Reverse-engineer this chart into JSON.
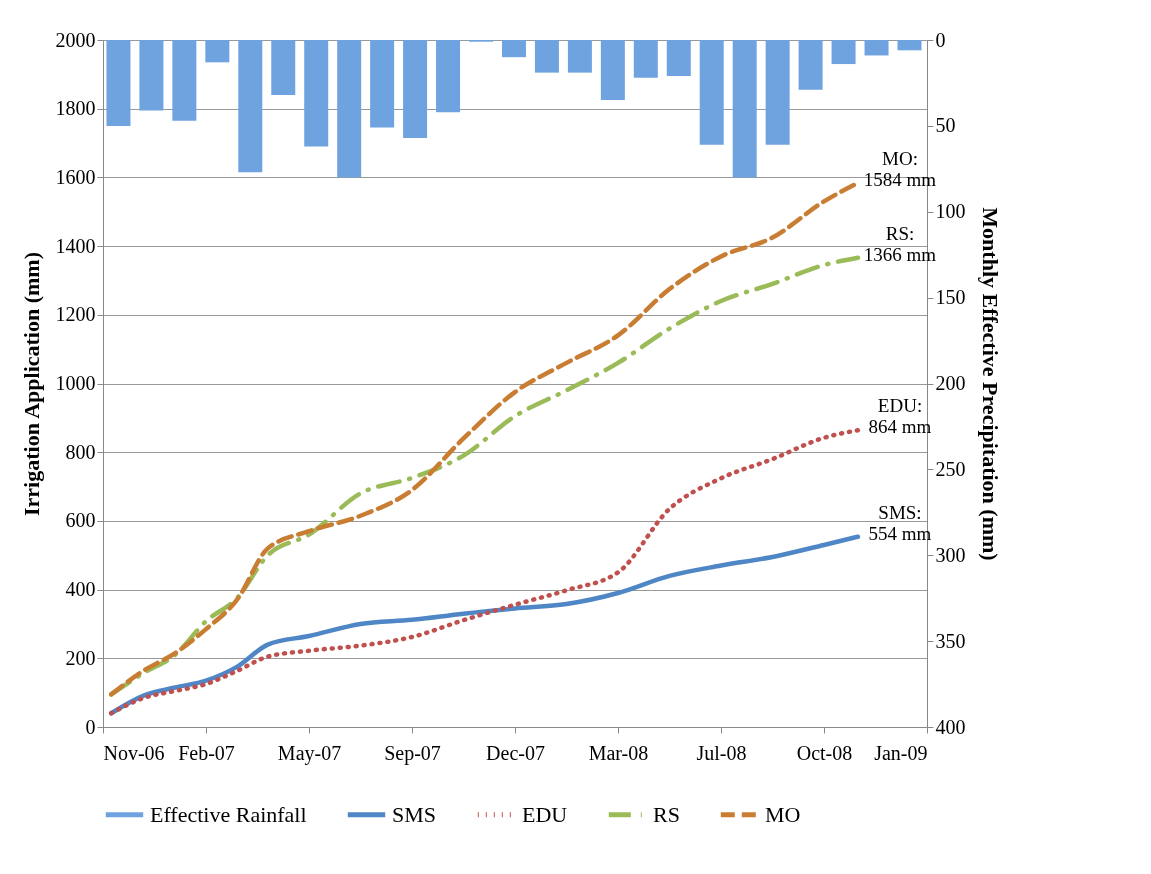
{
  "chart_data": {
    "type": "line",
    "ylabel": "Irrigation Application (mm)",
    "y2label": "Monthly Effective Precipitation (mm)",
    "xlim": [
      "2006-11-10",
      "2009-01-18"
    ],
    "xticks": [
      {
        "value": "2006-11-10",
        "label": "Nov-06"
      },
      {
        "value": "2007-02-18",
        "label": "Feb-07"
      },
      {
        "value": "2007-05-29",
        "label": "May-07"
      },
      {
        "value": "2007-09-06",
        "label": "Sep-07"
      },
      {
        "value": "2007-12-15",
        "label": "Dec-07"
      },
      {
        "value": "2008-03-24",
        "label": "Mar-08"
      },
      {
        "value": "2008-07-02",
        "label": "Jul-08"
      },
      {
        "value": "2008-10-10",
        "label": "Oct-08"
      },
      {
        "value": "2009-01-18",
        "label": "Jan-09"
      }
    ],
    "ylim": [
      0,
      2000
    ],
    "yticks": [
      0,
      200,
      400,
      600,
      800,
      1000,
      1200,
      1400,
      1600,
      1800,
      2000
    ],
    "y2lim": [
      400,
      0
    ],
    "y2ticks": [
      0,
      50,
      100,
      150,
      200,
      250,
      300,
      350,
      400
    ],
    "grid": "y",
    "legend": "bottom",
    "x": [
      "2006-11-18",
      "2006-12-20",
      "2007-01-19",
      "2007-02-18",
      "2007-03-20",
      "2007-04-19",
      "2007-05-29",
      "2007-07-18",
      "2007-09-06",
      "2007-10-26",
      "2007-12-15",
      "2008-02-03",
      "2008-03-24",
      "2008-05-13",
      "2008-07-02",
      "2008-08-21",
      "2008-10-10",
      "2008-11-12"
    ],
    "series": [
      {
        "name": "Effective Rainfall",
        "type": "bar",
        "axis": "y2",
        "color": "#6fa3e0",
        "x": [
          "2006-11-25",
          "2006-12-27",
          "2007-01-28",
          "2007-03-01",
          "2007-04-02",
          "2007-05-04",
          "2007-06-05",
          "2007-07-07",
          "2007-08-08",
          "2007-09-09",
          "2007-10-11",
          "2007-11-12",
          "2007-12-14",
          "2008-01-15",
          "2008-02-16",
          "2008-03-19",
          "2008-04-20",
          "2008-05-22",
          "2008-06-23",
          "2008-07-25",
          "2008-08-26",
          "2008-09-27",
          "2008-10-29",
          "2008-11-30",
          "2009-01-01"
        ],
        "values": [
          50,
          41,
          47,
          13,
          77,
          32,
          62,
          80,
          51,
          57,
          42,
          1,
          10,
          19,
          19,
          35,
          22,
          21,
          61,
          80,
          61,
          29,
          14,
          9,
          6
        ]
      },
      {
        "name": "SMS",
        "color": "#4f86c6",
        "line_style": "solid",
        "values": [
          40,
          92,
          115,
          135,
          175,
          240,
          265,
          300,
          312,
          330,
          345,
          358,
          390,
          440,
          470,
          495,
          530,
          554
        ]
      },
      {
        "name": "EDU",
        "color": "#c0504d",
        "line_style": "dotted",
        "values": [
          40,
          85,
          105,
          125,
          163,
          205,
          222,
          237,
          262,
          311,
          356,
          398,
          450,
          635,
          724,
          780,
          842,
          864
        ]
      },
      {
        "name": "RS",
        "color": "#9bbb59",
        "line_style": "dashdot",
        "values": [
          95,
          158,
          210,
          308,
          375,
          500,
          560,
          680,
          725,
          790,
          905,
          980,
          1060,
          1160,
          1240,
          1290,
          1345,
          1366
        ]
      },
      {
        "name": "MO",
        "color": "#c97d32",
        "line_style": "dashed",
        "values": [
          95,
          165,
          215,
          285,
          370,
          520,
          570,
          615,
          690,
          840,
          975,
          1060,
          1140,
          1275,
          1370,
          1425,
          1530,
          1584
        ]
      }
    ],
    "annotations": [
      {
        "text": "MO:\n1584 mm",
        "x": "2008-11-12",
        "y": 1584
      },
      {
        "text": "RS:\n1366 mm",
        "x": "2008-11-12",
        "y": 1366
      },
      {
        "text": "EDU:\n864 mm",
        "x": "2008-11-12",
        "y": 864
      },
      {
        "text": "SMS:\n554 mm",
        "x": "2008-11-12",
        "y": 554
      }
    ]
  }
}
